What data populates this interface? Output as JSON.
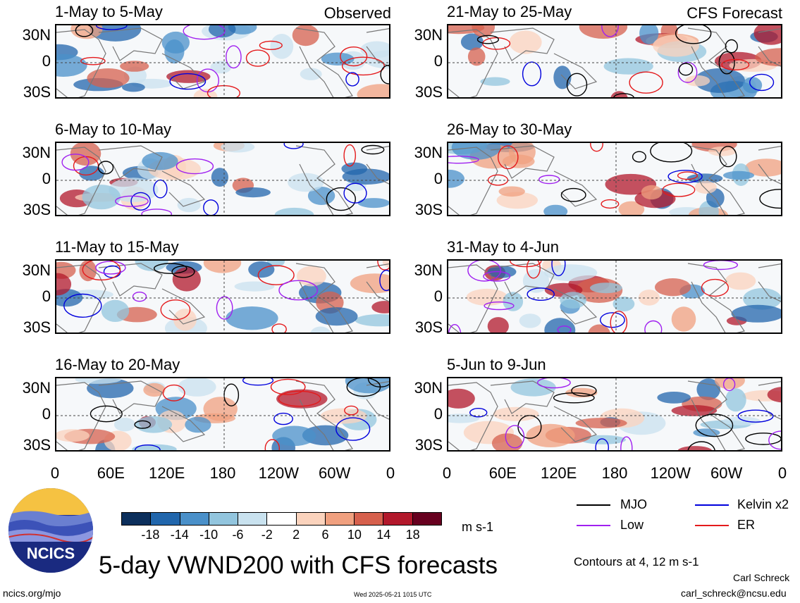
{
  "header": {
    "observed_label": "Observed",
    "forecast_label": "CFS Forecast"
  },
  "chart_data": {
    "type": "heatmap",
    "variable": "VWND200",
    "title": "5-day VWND200 with CFS forecasts",
    "units": "m s-1",
    "colorbar_ticks": [
      "-18",
      "-14",
      "-10",
      "-6",
      "-2",
      "2",
      "6",
      "10",
      "14",
      "18"
    ],
    "colorbar_colors": [
      "#0c2f5c",
      "#2166ac",
      "#4a90c9",
      "#92c5de",
      "#c9e2ef",
      "#ffffff",
      "#fbd3bd",
      "#f0a07f",
      "#d6604d",
      "#b2182b",
      "#67001f"
    ],
    "x_ticks": [
      "0",
      "60E",
      "120E",
      "180",
      "120W",
      "60W",
      "0"
    ],
    "y_ticks": [
      "30N",
      "0",
      "30S"
    ],
    "xlim": [
      0,
      360
    ],
    "ylim": [
      -40,
      40
    ],
    "contours_note": "Contours at 4, 12 m s-1",
    "legend": [
      {
        "label": "MJO",
        "color": "#000000"
      },
      {
        "label": "Kelvin x2",
        "color": "#0000dd"
      },
      {
        "label": "Low",
        "color": "#a020f0"
      },
      {
        "label": "ER",
        "color": "#e41a1c"
      }
    ],
    "panels": [
      {
        "label": "1-May to 5-May",
        "group": "Observed"
      },
      {
        "label": "6-May to 10-May",
        "group": "Observed"
      },
      {
        "label": "11-May to 15-May",
        "group": "Observed"
      },
      {
        "label": "16-May to 20-May",
        "group": "Observed"
      },
      {
        "label": "21-May to 25-May",
        "group": "CFS Forecast"
      },
      {
        "label": "26-May to 30-May",
        "group": "CFS Forecast"
      },
      {
        "label": "31-May to 4-Jun",
        "group": "CFS Forecast"
      },
      {
        "label": "5-Jun to 9-Jun",
        "group": "CFS Forecast"
      }
    ]
  },
  "footer": {
    "logo_text": "NCICS",
    "site": "ncics.org/mjo",
    "timestamp": "Wed 2025-05-21 1015 UTC",
    "author": "Carl Schreck",
    "email": "carl_schreck@ncsu.edu"
  }
}
